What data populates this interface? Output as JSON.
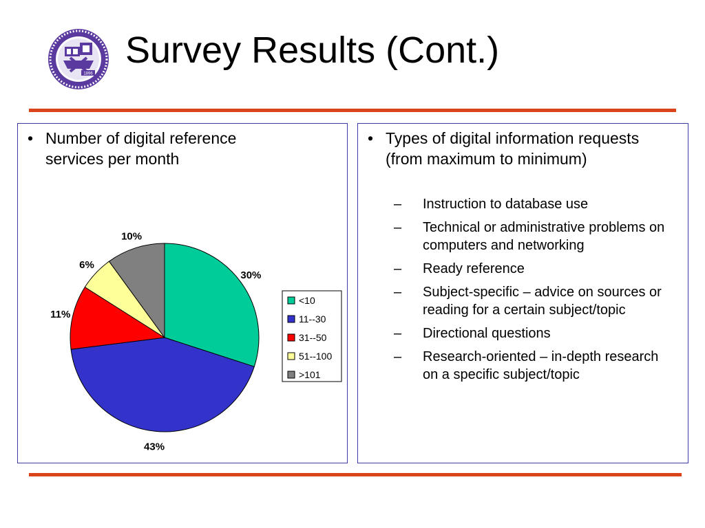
{
  "header": {
    "title": "Survey Results (Cont.)",
    "logo_text": "1896"
  },
  "left_panel": {
    "bullet": "Number of digital reference services per month"
  },
  "right_panel": {
    "bullet": "Types of digital information requests (from maximum to minimum)",
    "items": [
      "Instruction to database use",
      "Technical or administrative problems on computers and networking",
      "Ready reference",
      "Subject-specific – advice on sources or reading for a certain subject/topic",
      "Directional questions",
      "Research-oriented – in-depth research on a specific subject/topic"
    ]
  },
  "colors": {
    "rule": "#d9441a",
    "panel_border": "#3a3aa6"
  },
  "chart_data": {
    "type": "pie",
    "title": "",
    "categories": [
      "<10",
      "11--30",
      "31--50",
      "51--100",
      ">101"
    ],
    "values": [
      30,
      43,
      11,
      6,
      10
    ],
    "labels": [
      "30%",
      "43%",
      "11%",
      "6%",
      "10%"
    ],
    "colors": [
      "#00cc99",
      "#3333cc",
      "#ff0000",
      "#ffff99",
      "#808080"
    ],
    "legend_position": "right",
    "start_angle": "12 o'clock",
    "direction": "clockwise"
  }
}
